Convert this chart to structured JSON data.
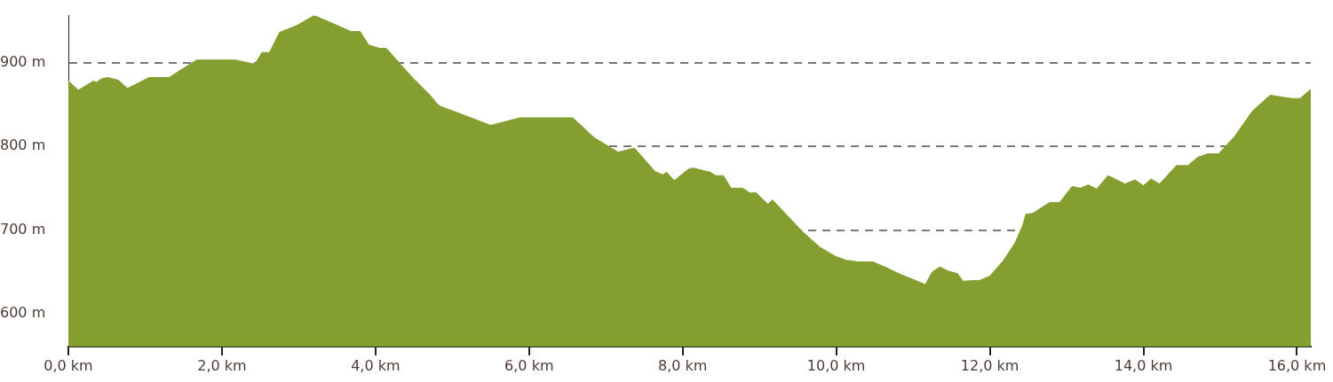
{
  "chart_data": {
    "type": "area",
    "x": [
      0,
      0.13,
      0.33,
      0.36,
      0.44,
      0.52,
      0.65,
      0.77,
      1.05,
      1.31,
      1.48,
      1.67,
      2.17,
      2.43,
      2.52,
      2.62,
      2.75,
      2.97,
      3.2,
      3.41,
      3.68,
      3.8,
      3.91,
      4.05,
      4.14,
      4.49,
      4.72,
      4.8,
      4.84,
      5.5,
      5.88,
      6.57,
      6.85,
      7.16,
      7.37,
      7.64,
      7.74,
      7.79,
      7.89,
      8.08,
      8.14,
      8.36,
      8.43,
      8.53,
      8.63,
      8.78,
      8.88,
      8.95,
      9.11,
      9.17,
      9.55,
      9.78,
      9.98,
      10.13,
      10.29,
      10.48,
      10.68,
      10.79,
      11.16,
      11.25,
      11.35,
      11.46,
      11.58,
      11.65,
      11.87,
      12,
      12.18,
      12.33,
      12.43,
      12.47,
      12.56,
      12.78,
      12.91,
      13.07,
      13.18,
      13.28,
      13.39,
      13.54,
      13.76,
      13.89,
      14,
      14.1,
      14.21,
      14.43,
      14.58,
      14.71,
      14.84,
      14.98,
      15.19,
      15.42,
      15.65,
      15.93,
      16.04,
      16.18
    ],
    "values": [
      878,
      867,
      878,
      876,
      881,
      882,
      879,
      869,
      882,
      882,
      892,
      903,
      903,
      898,
      912,
      912,
      936,
      944,
      956,
      948,
      937,
      937,
      921,
      917,
      917,
      881,
      860,
      851,
      848,
      825,
      834,
      834,
      810,
      793,
      798,
      770,
      766,
      769,
      759,
      773,
      774,
      769,
      765,
      765,
      750,
      750,
      744,
      745,
      731,
      736,
      699,
      680,
      669,
      664,
      662,
      662,
      654,
      649,
      635,
      650,
      656,
      651,
      648,
      639,
      640,
      645,
      664,
      685,
      706,
      719,
      720,
      733,
      733,
      752,
      750,
      754,
      749,
      765,
      755,
      760,
      753,
      761,
      755,
      777,
      777,
      787,
      791,
      791,
      812,
      842,
      861,
      857,
      857,
      868
    ],
    "color": "#849e2f",
    "xlim": [
      0,
      16.18
    ],
    "xticks": [
      {
        "value": 0,
        "label": "0,0 km"
      },
      {
        "value": 2,
        "label": "2,0 km"
      },
      {
        "value": 4,
        "label": "4,0 km"
      },
      {
        "value": 6,
        "label": "6,0 km"
      },
      {
        "value": 8,
        "label": "8,0 km"
      },
      {
        "value": 10,
        "label": "10,0 km"
      },
      {
        "value": 12,
        "label": "12,0 km"
      },
      {
        "value": 14,
        "label": "14,0 km"
      },
      {
        "value": 16,
        "label": "16,0 km"
      }
    ],
    "ylim": [
      561,
      956
    ],
    "yticks": [
      {
        "value": 600,
        "label": "600 m"
      },
      {
        "value": 700,
        "label": "700 m"
      },
      {
        "value": 800,
        "label": "800 m"
      },
      {
        "value": 900,
        "label": "900 m"
      }
    ],
    "grid": "y"
  }
}
